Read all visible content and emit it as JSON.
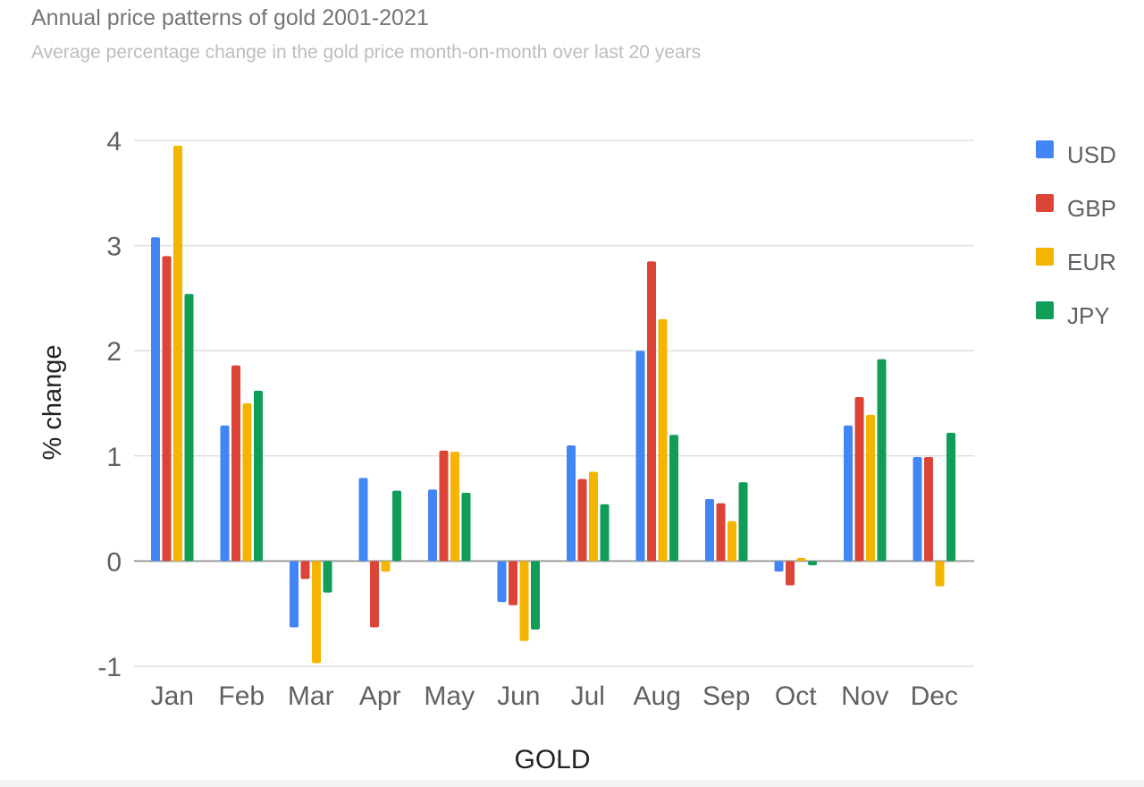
{
  "chart_data": {
    "type": "bar",
    "title": "Annual price patterns of gold 2001-2021",
    "subtitle": "Average percentage change in the gold price month-on-month over last 20 years",
    "xlabel": "GOLD",
    "ylabel": "% change",
    "ylim": [
      -1,
      4
    ],
    "yticks": [
      "-1",
      "0",
      "1",
      "2",
      "3",
      "4"
    ],
    "grid": true,
    "legend_position": "right",
    "categories": [
      "Jan",
      "Feb",
      "Mar",
      "Apr",
      "May",
      "Jun",
      "Jul",
      "Aug",
      "Sep",
      "Oct",
      "Nov",
      "Dec"
    ],
    "series": [
      {
        "name": "USD",
        "color": "#4285f4",
        "values": [
          3.08,
          1.29,
          -0.63,
          0.79,
          0.68,
          -0.39,
          1.1,
          2.0,
          0.59,
          -0.1,
          1.29,
          0.99
        ]
      },
      {
        "name": "GBP",
        "color": "#db4437",
        "values": [
          2.9,
          1.86,
          -0.17,
          -0.63,
          1.05,
          -0.42,
          0.78,
          2.85,
          0.55,
          -0.23,
          1.56,
          0.99
        ]
      },
      {
        "name": "EUR",
        "color": "#f4b400",
        "values": [
          3.95,
          1.5,
          -0.97,
          -0.1,
          1.04,
          -0.76,
          0.85,
          2.3,
          0.38,
          0.03,
          1.39,
          -0.24
        ]
      },
      {
        "name": "JPY",
        "color": "#0f9d58",
        "values": [
          2.54,
          1.62,
          -0.3,
          0.67,
          0.65,
          -0.65,
          0.54,
          1.2,
          0.75,
          -0.04,
          1.92,
          1.22
        ]
      }
    ]
  }
}
